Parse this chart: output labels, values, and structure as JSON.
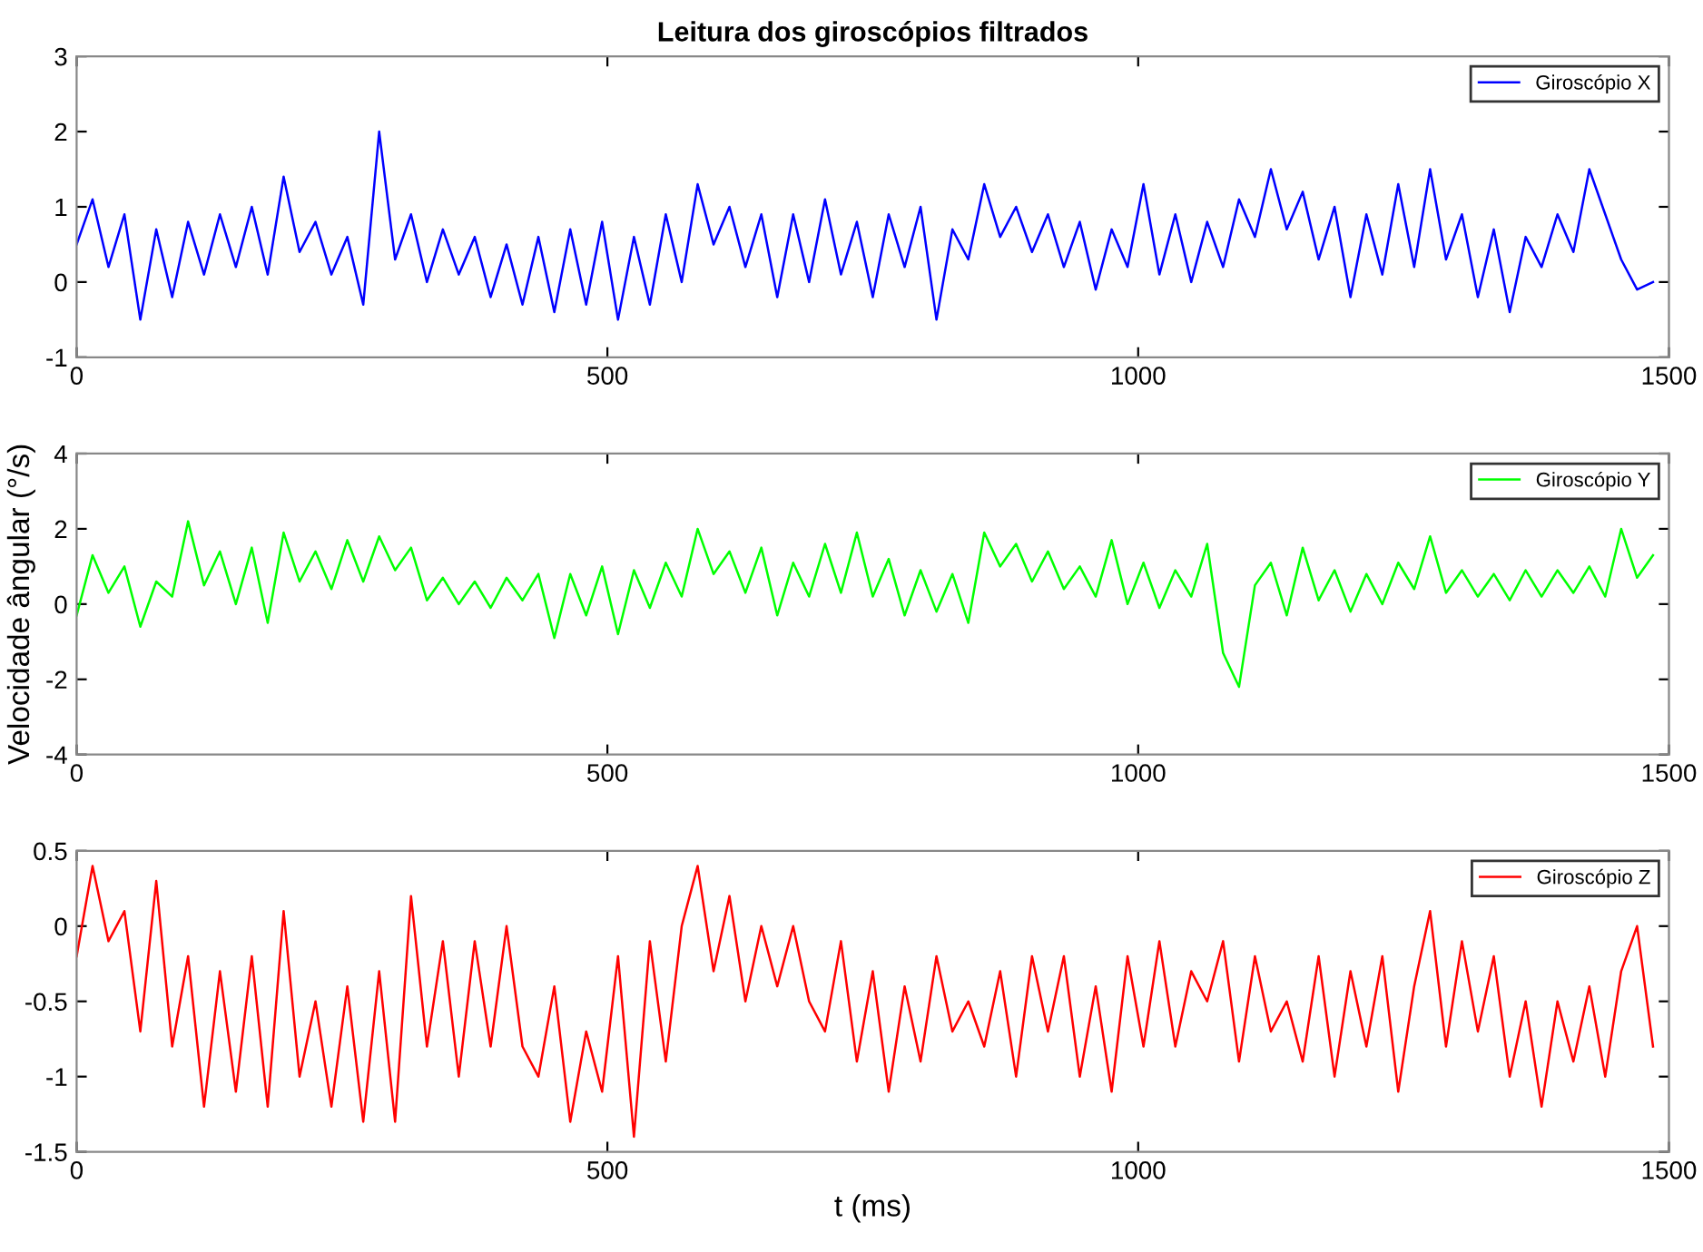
{
  "chart_data": [
    {
      "type": "line",
      "title": "Leitura dos giroscópios filtrados",
      "legend": "top right",
      "grid": false,
      "x": [
        0,
        15,
        30,
        45,
        60,
        75,
        90,
        105,
        120,
        135,
        150,
        165,
        180,
        195,
        210,
        225,
        240,
        255,
        270,
        285,
        300,
        315,
        330,
        345,
        360,
        375,
        390,
        405,
        420,
        435,
        450,
        465,
        480,
        495,
        510,
        525,
        540,
        555,
        570,
        585,
        600,
        615,
        630,
        645,
        660,
        675,
        690,
        705,
        720,
        735,
        750,
        765,
        780,
        795,
        810,
        825,
        840,
        855,
        870,
        885,
        900,
        915,
        930,
        945,
        960,
        975,
        990,
        1005,
        1020,
        1035,
        1050,
        1065,
        1080,
        1095,
        1110,
        1125,
        1140,
        1155,
        1170,
        1185,
        1200,
        1215,
        1230,
        1245,
        1260,
        1275,
        1290,
        1305,
        1320,
        1335,
        1350,
        1365,
        1380,
        1395,
        1410,
        1425,
        1440,
        1455,
        1470,
        1485
      ],
      "series": [
        {
          "name": "Giroscópio X",
          "color": "#0000ff",
          "values": [
            0.5,
            1.1,
            0.2,
            0.9,
            -0.5,
            0.7,
            -0.2,
            0.8,
            0.1,
            0.9,
            0.2,
            1.0,
            0.1,
            1.4,
            0.4,
            0.8,
            0.1,
            0.6,
            -0.3,
            2.0,
            0.3,
            0.9,
            0.0,
            0.7,
            0.1,
            0.6,
            -0.2,
            0.5,
            -0.3,
            0.6,
            -0.4,
            0.7,
            -0.3,
            0.8,
            -0.5,
            0.6,
            -0.3,
            0.9,
            0.0,
            1.3,
            0.5,
            1.0,
            0.2,
            0.9,
            -0.2,
            0.9,
            0.0,
            1.1,
            0.1,
            0.8,
            -0.2,
            0.9,
            0.2,
            1.0,
            -0.5,
            0.7,
            0.3,
            1.3,
            0.6,
            1.0,
            0.4,
            0.9,
            0.2,
            0.8,
            -0.1,
            0.7,
            0.2,
            1.3,
            0.1,
            0.9,
            0.0,
            0.8,
            0.2,
            1.1,
            0.6,
            1.5,
            0.7,
            1.2,
            0.3,
            1.0,
            -0.2,
            0.9,
            0.1,
            1.3,
            0.2,
            1.5,
            0.3,
            0.9,
            -0.2,
            0.7,
            -0.4,
            0.6,
            0.2,
            0.9,
            0.4,
            1.5,
            0.9,
            0.3,
            -0.1,
            0.0
          ]
        }
      ],
      "xlim": [
        0,
        1500
      ],
      "xticks": [
        0,
        500,
        1000,
        1500
      ],
      "ylim": [
        -1,
        3
      ],
      "yticks": [
        -1,
        0,
        1,
        2,
        3
      ]
    },
    {
      "type": "line",
      "ylabel": "Velocidade ângular (°/s)",
      "legend": "top right",
      "grid": false,
      "x": [
        0,
        15,
        30,
        45,
        60,
        75,
        90,
        105,
        120,
        135,
        150,
        165,
        180,
        195,
        210,
        225,
        240,
        255,
        270,
        285,
        300,
        315,
        330,
        345,
        360,
        375,
        390,
        405,
        420,
        435,
        450,
        465,
        480,
        495,
        510,
        525,
        540,
        555,
        570,
        585,
        600,
        615,
        630,
        645,
        660,
        675,
        690,
        705,
        720,
        735,
        750,
        765,
        780,
        795,
        810,
        825,
        840,
        855,
        870,
        885,
        900,
        915,
        930,
        945,
        960,
        975,
        990,
        1005,
        1020,
        1035,
        1050,
        1065,
        1080,
        1095,
        1110,
        1125,
        1140,
        1155,
        1170,
        1185,
        1200,
        1215,
        1230,
        1245,
        1260,
        1275,
        1290,
        1305,
        1320,
        1335,
        1350,
        1365,
        1380,
        1395,
        1410,
        1425,
        1440,
        1455,
        1470,
        1485
      ],
      "series": [
        {
          "name": "Giroscópio Y",
          "color": "#00ff00",
          "values": [
            -0.3,
            1.3,
            0.3,
            1.0,
            -0.6,
            0.6,
            0.2,
            2.2,
            0.5,
            1.4,
            0.0,
            1.5,
            -0.5,
            1.9,
            0.6,
            1.4,
            0.4,
            1.7,
            0.6,
            1.8,
            0.9,
            1.5,
            0.1,
            0.7,
            0.0,
            0.6,
            -0.1,
            0.7,
            0.1,
            0.8,
            -0.9,
            0.8,
            -0.3,
            1.0,
            -0.8,
            0.9,
            -0.1,
            1.1,
            0.2,
            2.0,
            0.8,
            1.4,
            0.3,
            1.5,
            -0.3,
            1.1,
            0.2,
            1.6,
            0.3,
            1.9,
            0.2,
            1.2,
            -0.3,
            0.9,
            -0.2,
            0.8,
            -0.5,
            1.9,
            1.0,
            1.6,
            0.6,
            1.4,
            0.4,
            1.0,
            0.2,
            1.7,
            0.0,
            1.1,
            -0.1,
            0.9,
            0.2,
            1.6,
            -1.3,
            -2.2,
            0.5,
            1.1,
            -0.3,
            1.5,
            0.1,
            0.9,
            -0.2,
            0.8,
            0.0,
            1.1,
            0.4,
            1.8,
            0.3,
            0.9,
            0.2,
            0.8,
            0.1,
            0.9,
            0.2,
            0.9,
            0.3,
            1.0,
            0.2,
            2.0,
            0.7,
            1.3
          ]
        }
      ],
      "xlim": [
        0,
        1500
      ],
      "xticks": [
        0,
        500,
        1000,
        1500
      ],
      "ylim": [
        -4,
        4
      ],
      "yticks": [
        -4,
        -2,
        0,
        2,
        4
      ]
    },
    {
      "type": "line",
      "xlabel": "t (ms)",
      "legend": "top right",
      "grid": false,
      "x": [
        0,
        15,
        30,
        45,
        60,
        75,
        90,
        105,
        120,
        135,
        150,
        165,
        180,
        195,
        210,
        225,
        240,
        255,
        270,
        285,
        300,
        315,
        330,
        345,
        360,
        375,
        390,
        405,
        420,
        435,
        450,
        465,
        480,
        495,
        510,
        525,
        540,
        555,
        570,
        585,
        600,
        615,
        630,
        645,
        660,
        675,
        690,
        705,
        720,
        735,
        750,
        765,
        780,
        795,
        810,
        825,
        840,
        855,
        870,
        885,
        900,
        915,
        930,
        945,
        960,
        975,
        990,
        1005,
        1020,
        1035,
        1050,
        1065,
        1080,
        1095,
        1110,
        1125,
        1140,
        1155,
        1170,
        1185,
        1200,
        1215,
        1230,
        1245,
        1260,
        1275,
        1290,
        1305,
        1320,
        1335,
        1350,
        1365,
        1380,
        1395,
        1410,
        1425,
        1440,
        1455,
        1470,
        1485
      ],
      "series": [
        {
          "name": "Giroscópio Z",
          "color": "#ff0000",
          "values": [
            -0.2,
            0.4,
            -0.1,
            0.1,
            -0.7,
            0.3,
            -0.8,
            -0.2,
            -1.2,
            -0.3,
            -1.1,
            -0.2,
            -1.2,
            0.1,
            -1.0,
            -0.5,
            -1.2,
            -0.4,
            -1.3,
            -0.3,
            -1.3,
            0.2,
            -0.8,
            -0.1,
            -1.0,
            -0.1,
            -0.8,
            0.0,
            -0.8,
            -1.0,
            -0.4,
            -1.3,
            -0.7,
            -1.1,
            -0.2,
            -1.4,
            -0.1,
            -0.9,
            0.0,
            0.4,
            -0.3,
            0.2,
            -0.5,
            0.0,
            -0.4,
            0.0,
            -0.5,
            -0.7,
            -0.1,
            -0.9,
            -0.3,
            -1.1,
            -0.4,
            -0.9,
            -0.2,
            -0.7,
            -0.5,
            -0.8,
            -0.3,
            -1.0,
            -0.2,
            -0.7,
            -0.2,
            -1.0,
            -0.4,
            -1.1,
            -0.2,
            -0.8,
            -0.1,
            -0.8,
            -0.3,
            -0.5,
            -0.1,
            -0.9,
            -0.2,
            -0.7,
            -0.5,
            -0.9,
            -0.2,
            -1.0,
            -0.3,
            -0.8,
            -0.2,
            -1.1,
            -0.4,
            0.1,
            -0.8,
            -0.1,
            -0.7,
            -0.2,
            -1.0,
            -0.5,
            -1.2,
            -0.5,
            -0.9,
            -0.4,
            -1.0,
            -0.3,
            0.0,
            -0.8
          ]
        }
      ],
      "xlim": [
        0,
        1500
      ],
      "xticks": [
        0,
        500,
        1000,
        1500
      ],
      "ylim": [
        -1.5,
        0.5
      ],
      "yticks": [
        -1.5,
        -1,
        -0.5,
        0,
        0.5
      ]
    }
  ]
}
